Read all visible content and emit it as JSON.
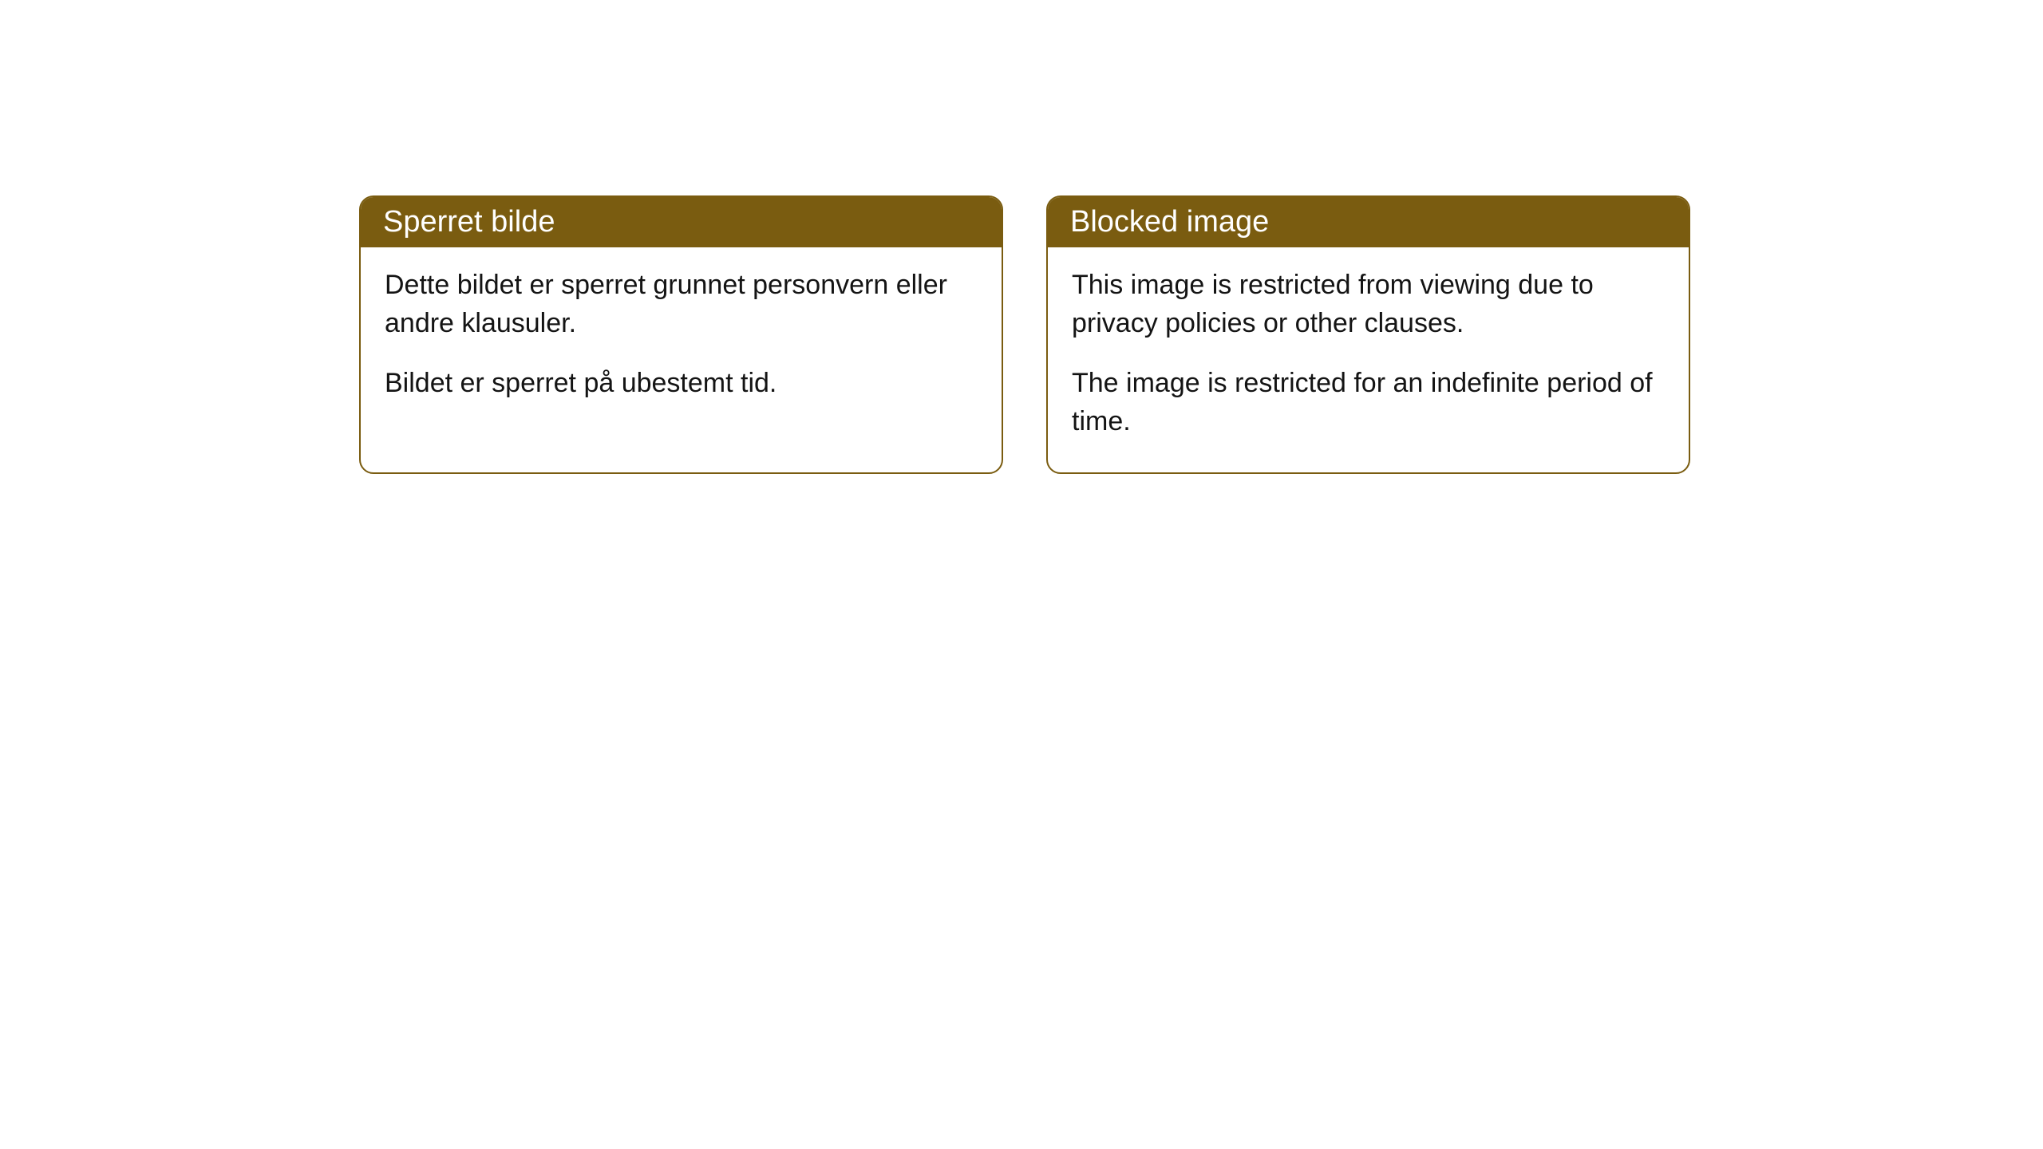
{
  "cards": [
    {
      "title": "Sperret bilde",
      "paragraph1": "Dette bildet er sperret grunnet personvern eller andre klausuler.",
      "paragraph2": "Bildet er sperret på ubestemt tid."
    },
    {
      "title": "Blocked image",
      "paragraph1": "This image is restricted from viewing due to privacy policies or other clauses.",
      "paragraph2": "The image is restricted for an indefinite period of time."
    }
  ],
  "style": {
    "header_bg_color": "#7a5c10",
    "header_text_color": "#ffffff",
    "border_color": "#7a5c10",
    "body_text_color": "#141414",
    "body_bg_color": "#ffffff",
    "border_radius": 18,
    "title_fontsize": 38,
    "body_fontsize": 34
  }
}
